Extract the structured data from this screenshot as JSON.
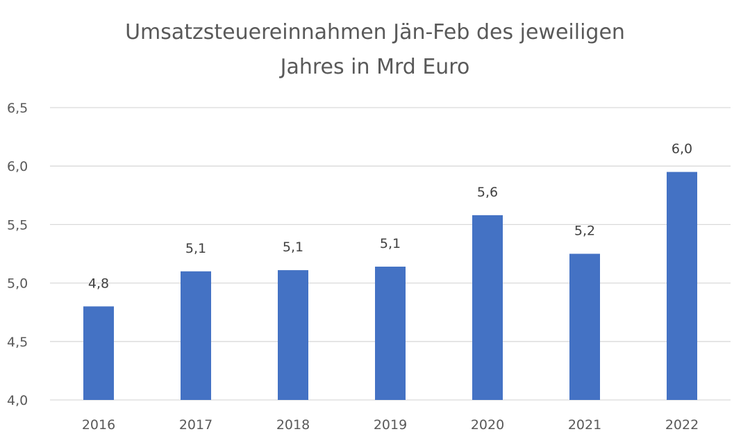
{
  "chart_data": {
    "type": "bar",
    "title_lines": [
      "Umsatzsteuereinnahmen Jän-Feb des jeweiligen",
      "Jahres in Mrd Euro"
    ],
    "categories": [
      "2016",
      "2017",
      "2018",
      "2019",
      "2020",
      "2021",
      "2022"
    ],
    "values": [
      4.8,
      5.1,
      5.11,
      5.14,
      5.58,
      5.25,
      5.95
    ],
    "data_labels": [
      "4,8",
      "5,1",
      "5,1",
      "5,1",
      "5,6",
      "5,2",
      "6,0"
    ],
    "ylim": [
      4.0,
      6.5
    ],
    "yticks": [
      4.0,
      4.5,
      5.0,
      5.5,
      6.0,
      6.5
    ],
    "ytick_labels": [
      "4,0",
      "4,5",
      "5,0",
      "5,5",
      "6,0",
      "6,5"
    ],
    "grid": true,
    "bar_color": "#4472C4",
    "grid_color": "#D9D9D9"
  }
}
